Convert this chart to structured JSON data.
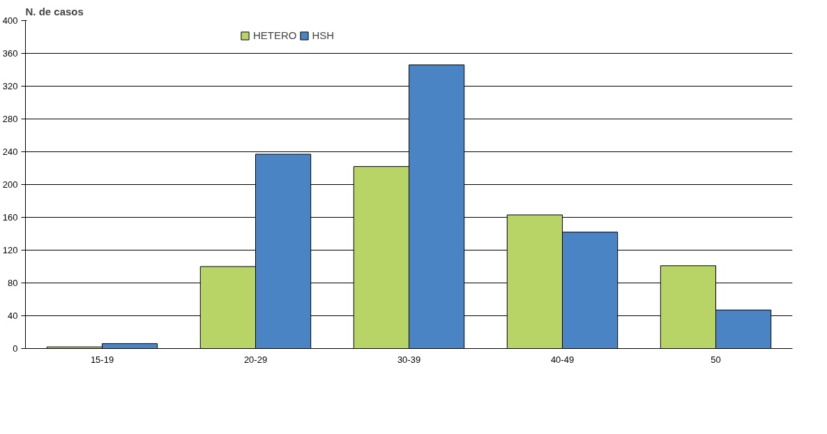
{
  "chart_data": {
    "type": "bar",
    "ylabel": "N. de casos",
    "categories": [
      "15-19",
      "20-29",
      "30-39",
      "40-49",
      "50"
    ],
    "series": [
      {
        "name": "HETERO",
        "color": "#b9d466",
        "values": [
          2,
          100,
          222,
          163,
          101
        ]
      },
      {
        "name": "HSH",
        "color": "#4a84c4",
        "values": [
          6,
          237,
          346,
          142,
          47
        ]
      }
    ],
    "ylim": [
      0,
      400
    ],
    "yticks": [
      0,
      40,
      80,
      120,
      160,
      200,
      240,
      280,
      320,
      360,
      400
    ],
    "grid": "y",
    "legend": "top"
  }
}
